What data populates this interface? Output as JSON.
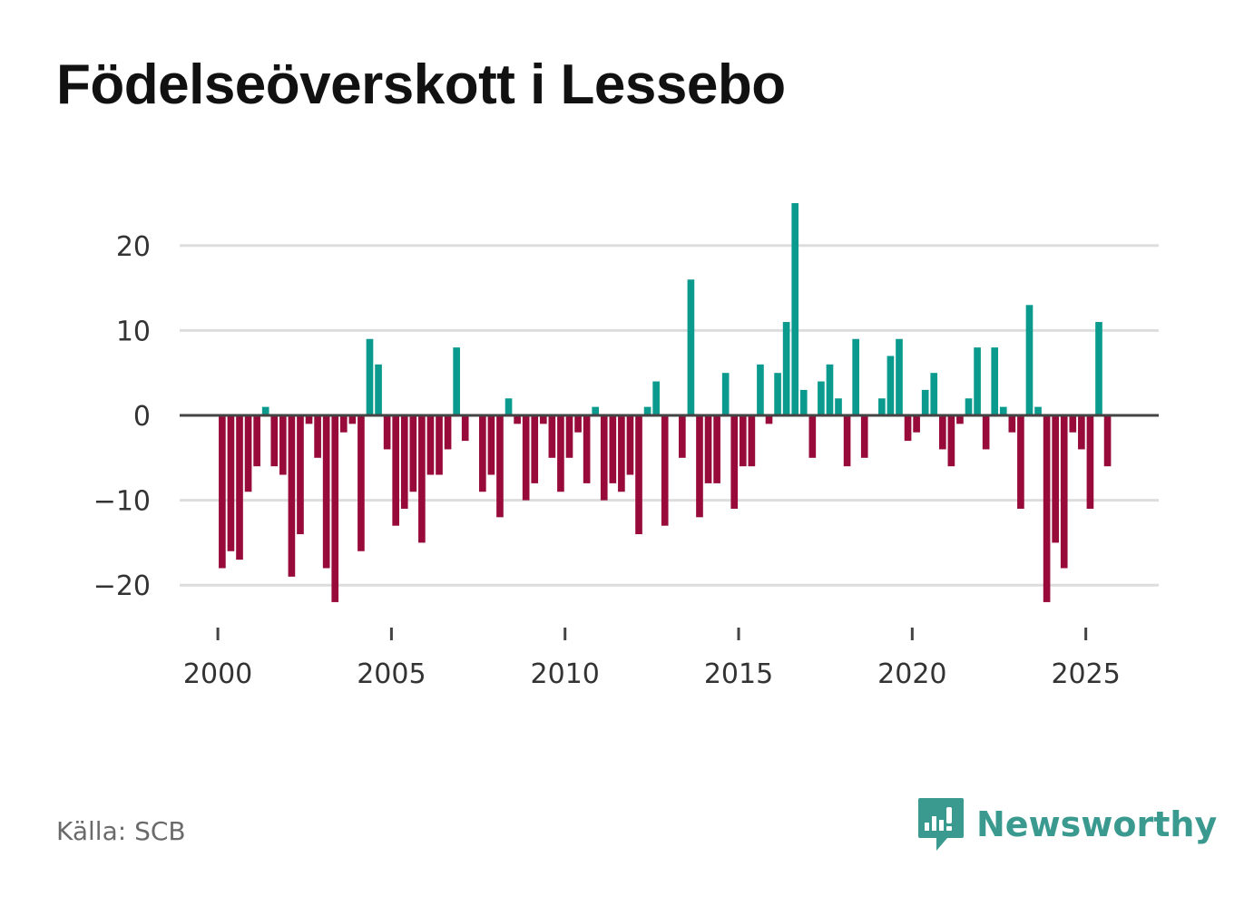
{
  "chart_data": {
    "type": "bar",
    "title": "Födelseöverskott i Lessebo",
    "xlabel": "",
    "ylabel": "",
    "x_ticks": [
      2000,
      2005,
      2010,
      2015,
      2020,
      2025
    ],
    "x_tick_labels": [
      "2000",
      "2005",
      "2010",
      "2015",
      "2020",
      "2025"
    ],
    "y_ticks": [
      20,
      10,
      0,
      -10,
      -20
    ],
    "y_tick_labels": [
      "20",
      "10",
      "0",
      "−10",
      "−20"
    ],
    "ylim": [
      -25,
      25
    ],
    "xlim": [
      1998.9,
      2027.1
    ],
    "x_start": 2000.125,
    "x_step": 0.25,
    "values": [
      -18,
      -16,
      -17,
      -9,
      -6,
      1,
      -6,
      -7,
      -19,
      -14,
      -1,
      -5,
      -18,
      -22,
      -2,
      -1,
      -16,
      9,
      6,
      -4,
      -13,
      -11,
      -9,
      -15,
      -7,
      -7,
      -4,
      8,
      -3,
      0,
      -9,
      -7,
      -12,
      2,
      -1,
      -10,
      -8,
      -1,
      -5,
      -9,
      -5,
      -2,
      -8,
      1,
      -10,
      -8,
      -9,
      -7,
      -14,
      1,
      4,
      -13,
      0,
      -5,
      16,
      -12,
      -8,
      -8,
      5,
      -11,
      -6,
      -6,
      6,
      -1,
      5,
      11,
      25,
      3,
      -5,
      4,
      6,
      2,
      -6,
      9,
      -5,
      0,
      2,
      7,
      9,
      -3,
      -2,
      3,
      5,
      -4,
      -6,
      -1,
      2,
      8,
      -4,
      8,
      1,
      -2,
      -11,
      13,
      1,
      -22,
      -15,
      -18,
      -2,
      -4,
      -11,
      11,
      -6
    ],
    "colors": {
      "positive": "#0b9b8e",
      "negative": "#970a3a"
    },
    "grid": true,
    "legend": "none"
  },
  "footer": {
    "source": "Källa: SCB",
    "brand": "Newsworthy"
  },
  "colors": {
    "grid": "#dddddd",
    "zero_line": "#444444",
    "brand": "#3a9a8f"
  }
}
